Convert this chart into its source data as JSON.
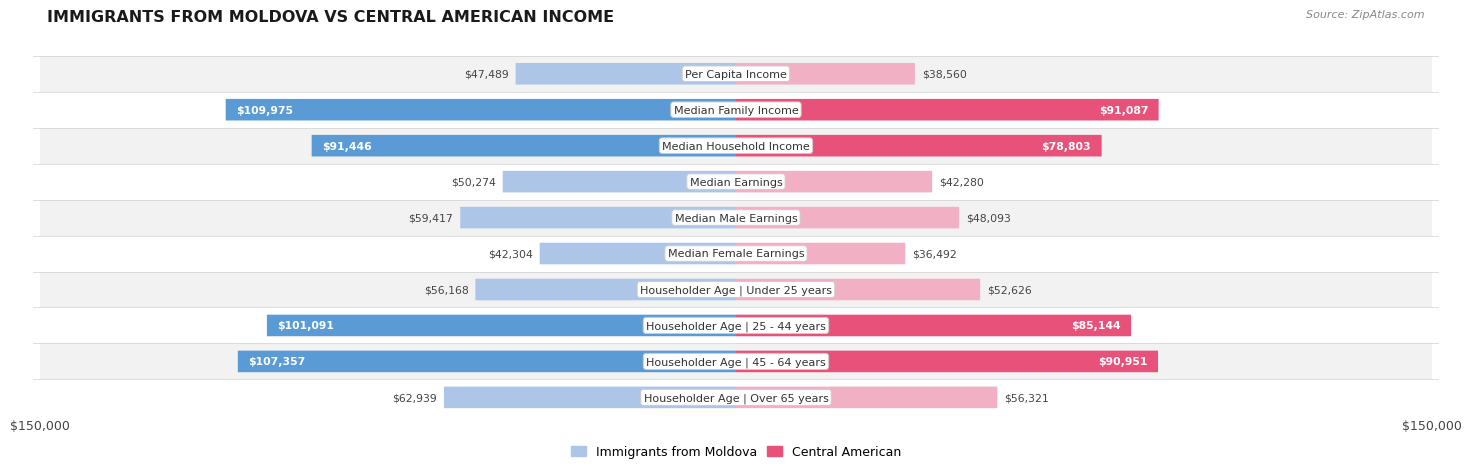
{
  "title": "IMMIGRANTS FROM MOLDOVA VS CENTRAL AMERICAN INCOME",
  "source": "Source: ZipAtlas.com",
  "categories": [
    "Per Capita Income",
    "Median Family Income",
    "Median Household Income",
    "Median Earnings",
    "Median Male Earnings",
    "Median Female Earnings",
    "Householder Age | Under 25 years",
    "Householder Age | 25 - 44 years",
    "Householder Age | 45 - 64 years",
    "Householder Age | Over 65 years"
  ],
  "moldova_values": [
    47489,
    109975,
    91446,
    50274,
    59417,
    42304,
    56168,
    101091,
    107357,
    62939
  ],
  "central_values": [
    38560,
    91087,
    78803,
    42280,
    48093,
    36492,
    52626,
    85144,
    90951,
    56321
  ],
  "moldova_color_strong": "#5b9bd5",
  "moldova_color_light": "#adc6e8",
  "central_color_strong": "#e8527a",
  "central_color_light": "#f2b0c4",
  "max_value": 150000,
  "row_bg_even": "#f2f2f2",
  "row_bg_odd": "#ffffff",
  "bar_height": 0.6,
  "legend_moldova": "Immigrants from Moldova",
  "legend_central": "Central American",
  "x_label_left": "$150,000",
  "x_label_right": "$150,000",
  "moldova_strong_threshold": 75000,
  "central_strong_threshold": 75000
}
